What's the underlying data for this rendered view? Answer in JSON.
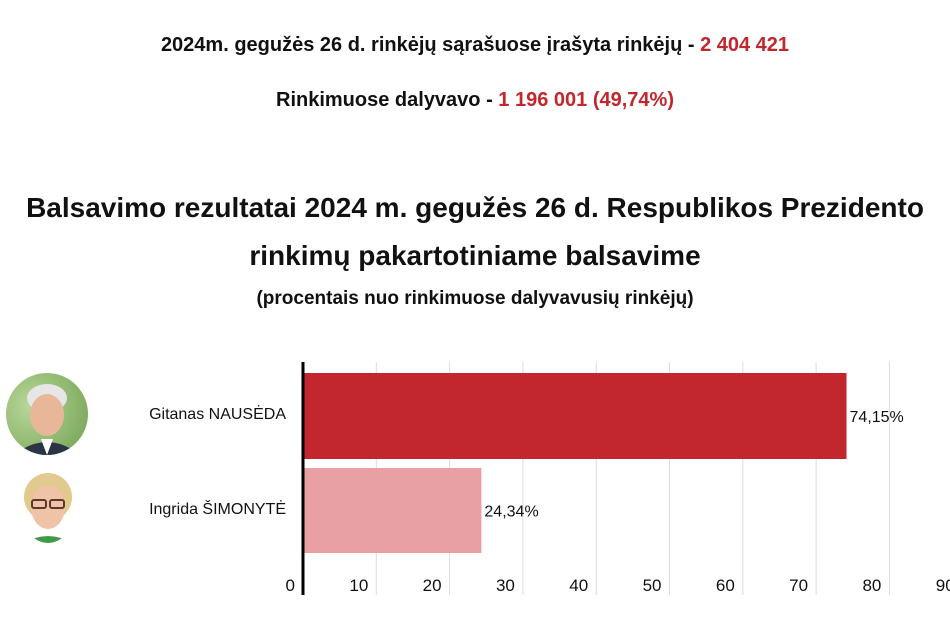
{
  "header": {
    "registered_label": "2024m. gegužės 26 d. rinkėjų sąrašuose įrašyta rinkėjų - ",
    "registered_value": "2 404 421",
    "turnout_label": "Rinkimuose dalyvavo - ",
    "turnout_value": "1 196 001 (49,74%)"
  },
  "chart_data": {
    "type": "bar",
    "orientation": "horizontal",
    "title": "Balsavimo rezultatai 2024 m. gegužės 26 d. Respublikos Prezidento rinkimų pakartotiniame balsavime",
    "title_line1": "Balsavimo rezultatai 2024 m. gegužės 26 d. Respublikos Prezidento",
    "title_line2": "rinkimų pakartotiniame balsavime",
    "subtitle": "(procentais nuo rinkimuose dalyvavusių rinkėjų)",
    "categories": [
      "Gitanas NAUSĖDA",
      "Ingrida ŠIMONYTĖ"
    ],
    "values": [
      74.15,
      24.34
    ],
    "data_labels": [
      "74,15%",
      "24,34%"
    ],
    "colors": [
      "#c1272d",
      "#e8a0a4"
    ],
    "xlim": [
      0,
      90
    ],
    "xticks": [
      "0",
      "10",
      "20",
      "30",
      "40",
      "50",
      "60",
      "70",
      "80",
      "90"
    ],
    "grid": true,
    "avatars": [
      "photo-nauseda",
      "photo-simonyte"
    ]
  }
}
